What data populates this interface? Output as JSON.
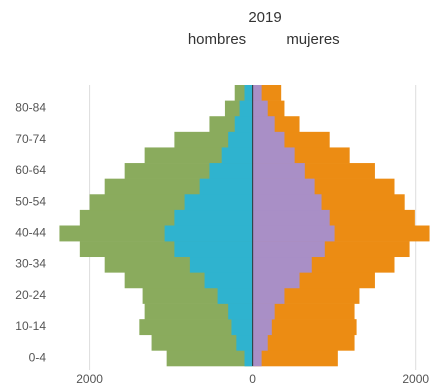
{
  "chart_data": {
    "type": "pyramid",
    "title": "2019",
    "left_label": "hombres",
    "right_label": "mujeres",
    "categories": [
      "0-4",
      null,
      "10-14",
      null,
      "20-24",
      null,
      "30-34",
      null,
      "40-44",
      null,
      "50-54",
      null,
      "60-64",
      null,
      "70-74",
      null,
      "80-84",
      null
    ],
    "series": [
      {
        "color": "#8aab5d",
        "values": [
          -1055,
          -1240,
          -1390,
          -1325,
          -1350,
          -1570,
          -1815,
          -2120,
          -2370,
          -2120,
          -2000,
          -1815,
          -1570,
          -1325,
          -960,
          -530,
          -340,
          -220
        ]
      },
      {
        "color": "#ec8c13",
        "values": [
          1045,
          1250,
          1275,
          1250,
          1310,
          1500,
          1740,
          1925,
          2170,
          1990,
          1865,
          1740,
          1500,
          1190,
          945,
          575,
          390,
          350
        ]
      },
      {
        "color": "#2fb3cf",
        "values": [
          -100,
          -200,
          -260,
          -300,
          -430,
          -590,
          -770,
          -960,
          -1080,
          -960,
          -835,
          -650,
          -530,
          -380,
          -300,
          -220,
          -160,
          -100
        ]
      },
      {
        "color": "#a98fc6",
        "values": [
          110,
          185,
          235,
          270,
          390,
          575,
          725,
          885,
          1005,
          945,
          845,
          760,
          640,
          515,
          390,
          270,
          185,
          110
        ]
      }
    ],
    "xlim": [
      -2400,
      2200
    ],
    "xticks": [
      {
        "value": -2000,
        "label": "2000"
      },
      0,
      2000
    ],
    "grid": true
  }
}
